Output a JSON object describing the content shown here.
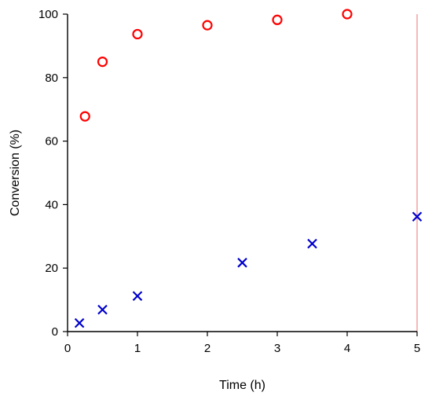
{
  "chart_data": {
    "type": "scatter",
    "title": "",
    "xlabel": "Time (h)",
    "ylabel": "Conversion (%)",
    "xlim": [
      0,
      5
    ],
    "ylim": [
      0,
      100
    ],
    "x_ticks": [
      0,
      1,
      2,
      3,
      4,
      5
    ],
    "y_ticks": [
      0,
      20,
      40,
      60,
      80,
      100
    ],
    "grid": false,
    "legend": "none",
    "series": [
      {
        "marker": "circle",
        "color": "#ff0000",
        "points": [
          {
            "x": 0.25,
            "y": 67.8
          },
          {
            "x": 0.5,
            "y": 85.0
          },
          {
            "x": 1.0,
            "y": 93.7
          },
          {
            "x": 2.0,
            "y": 96.5
          },
          {
            "x": 3.0,
            "y": 98.2
          },
          {
            "x": 4.0,
            "y": 100.0
          }
        ]
      },
      {
        "marker": "cross",
        "color": "#0000cc",
        "points": [
          {
            "x": 0.17,
            "y": 2.7
          },
          {
            "x": 0.5,
            "y": 6.9
          },
          {
            "x": 1.0,
            "y": 11.2
          },
          {
            "x": 2.5,
            "y": 21.7
          },
          {
            "x": 3.5,
            "y": 27.7
          },
          {
            "x": 5.0,
            "y": 36.2
          }
        ]
      }
    ],
    "right_border_color": "#f4a0a0"
  }
}
